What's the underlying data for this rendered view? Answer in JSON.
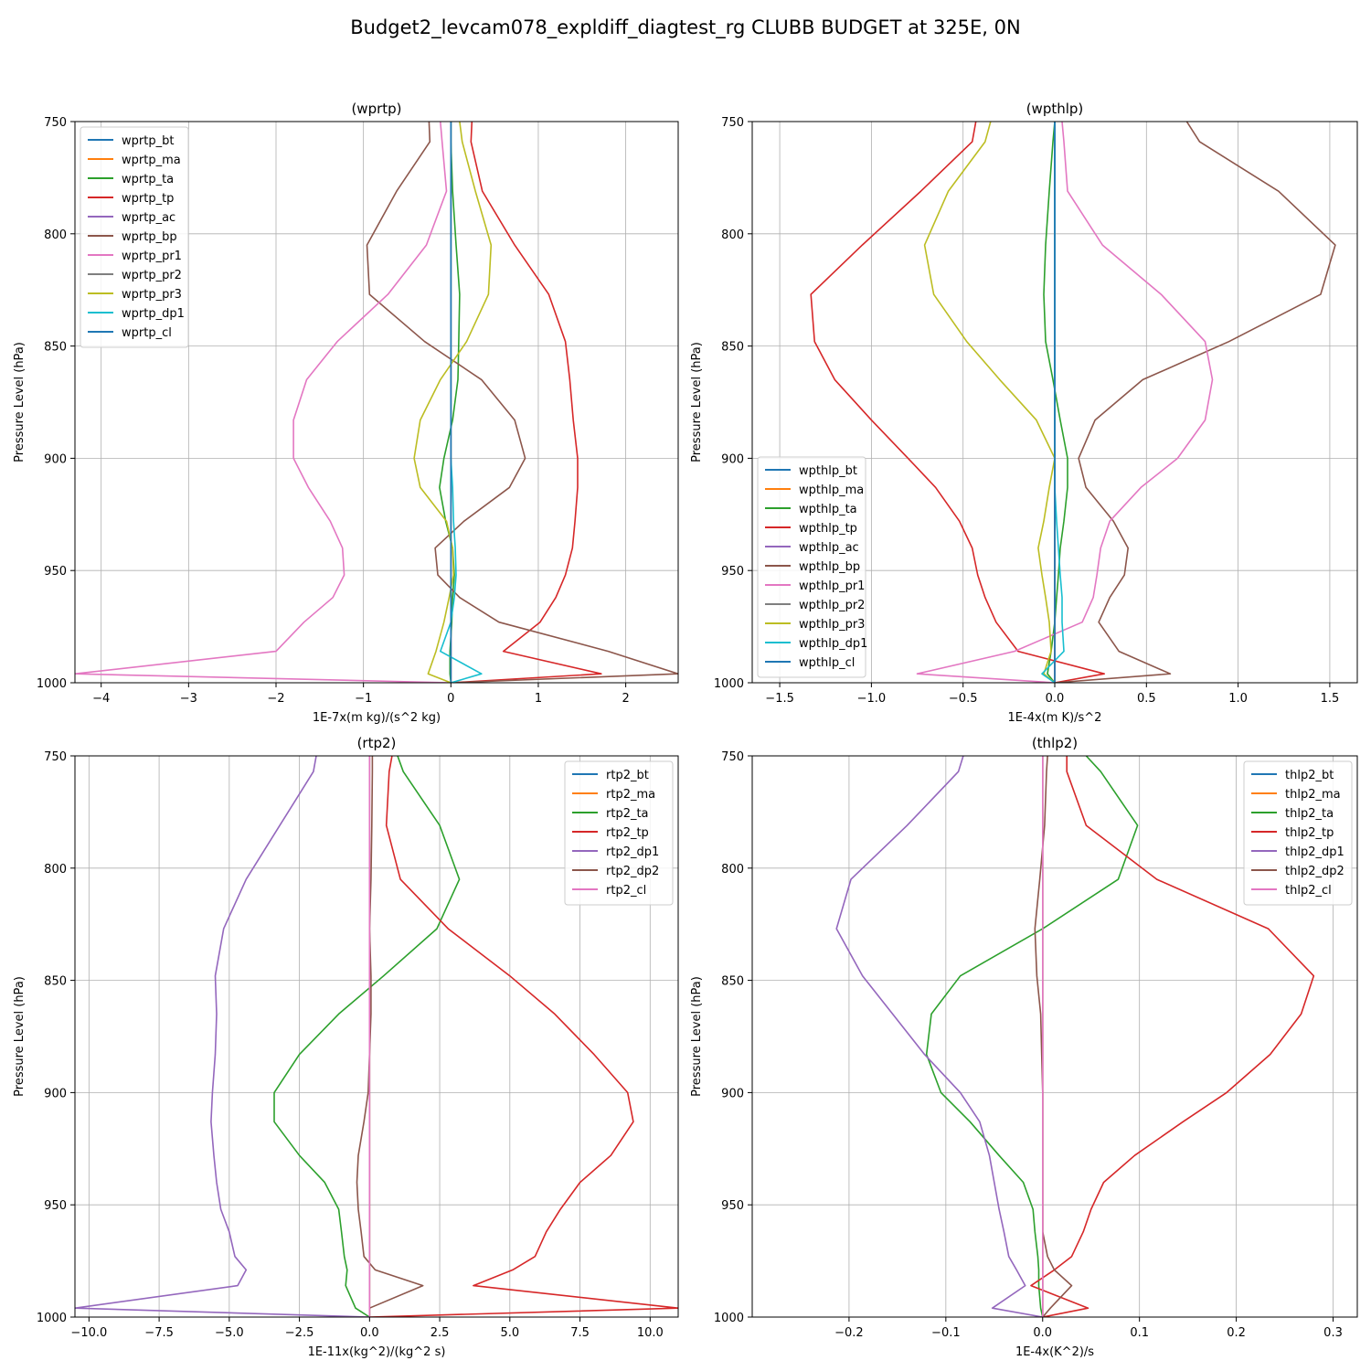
{
  "suptitle": "Budget2_levcam078_expldiff_diagtest_rg CLUBB BUDGET at 325E, 0N",
  "chart_data": [
    {
      "type": "line",
      "title": "(wprtp)",
      "xlabel": "1E-7x(m kg)/(s^2 kg)",
      "ylabel": "Pressure Level (hPa)",
      "xlim": [
        -4.3,
        2.6
      ],
      "ylim": [
        1000,
        750
      ],
      "xticks": [
        -4,
        -3,
        -2,
        -1,
        0,
        1,
        2
      ],
      "xtick_labels": [
        "−4",
        "−3",
        "−2",
        "−1",
        "0",
        "1",
        "2"
      ],
      "yticks": [
        750,
        800,
        850,
        900,
        950,
        1000
      ],
      "ytick_labels": [
        "750",
        "800",
        "850",
        "900",
        "950",
        "1000"
      ],
      "grid": true,
      "legend_position": "upper-left",
      "levels": [
        750,
        759,
        781,
        805,
        827,
        848,
        865,
        883,
        900,
        913,
        928,
        940,
        952,
        962,
        973,
        986,
        996,
        1000
      ],
      "series": [
        {
          "name": "wprtp_bt",
          "color": "#1f77b4",
          "values": [
            0,
            0,
            0,
            0,
            0,
            0,
            0,
            0,
            0,
            0,
            0,
            0,
            0,
            0,
            0,
            0,
            0,
            0
          ]
        },
        {
          "name": "wprtp_ma",
          "color": "#ff7f0e",
          "values": [
            0,
            0,
            0,
            0,
            0,
            0,
            0,
            0,
            0,
            0,
            0,
            0,
            0,
            0,
            0,
            0,
            0,
            0
          ]
        },
        {
          "name": "wprtp_ta",
          "color": "#2ca02c",
          "values": [
            0.0,
            0.0,
            0.02,
            0.06,
            0.1,
            0.09,
            0.08,
            0.02,
            -0.08,
            -0.13,
            -0.06,
            0.02,
            0.04,
            0.02,
            0.01,
            -0.01,
            -0.01,
            0.0
          ]
        },
        {
          "name": "wprtp_tp",
          "color": "#d62728",
          "values": [
            0.24,
            0.23,
            0.36,
            0.73,
            1.12,
            1.31,
            1.36,
            1.4,
            1.45,
            1.45,
            1.42,
            1.39,
            1.31,
            1.2,
            1.02,
            0.6,
            1.72,
            0.0
          ]
        },
        {
          "name": "wprtp_ac",
          "color": "#9467bd",
          "values": [
            0,
            0,
            0,
            0,
            0,
            0,
            0,
            0,
            0,
            0,
            0,
            0,
            0,
            0,
            0,
            0,
            0,
            0
          ]
        },
        {
          "name": "wprtp_bp",
          "color": "#8c564b",
          "values": [
            -0.25,
            -0.24,
            -0.62,
            -0.96,
            -0.93,
            -0.3,
            0.35,
            0.73,
            0.85,
            0.67,
            0.15,
            -0.18,
            -0.15,
            0.1,
            0.55,
            1.8,
            2.6,
            0.0
          ]
        },
        {
          "name": "wprtp_pr1",
          "color": "#e377c2",
          "values": [
            -0.12,
            -0.1,
            -0.05,
            -0.28,
            -0.72,
            -1.3,
            -1.65,
            -1.8,
            -1.8,
            -1.63,
            -1.38,
            -1.24,
            -1.22,
            -1.35,
            -1.68,
            -2.0,
            -4.3,
            0.0
          ]
        },
        {
          "name": "wprtp_pr2",
          "color": "#7f7f7f",
          "values": [
            0,
            0,
            0,
            0,
            0,
            0,
            0,
            0,
            0,
            0,
            0,
            0,
            0,
            0,
            0,
            0,
            0,
            0
          ]
        },
        {
          "name": "wprtp_pr3",
          "color": "#bcbd22",
          "values": [
            0.1,
            0.13,
            0.28,
            0.46,
            0.43,
            0.18,
            -0.12,
            -0.35,
            -0.42,
            -0.35,
            -0.05,
            0.02,
            0.03,
            -0.02,
            -0.08,
            -0.17,
            -0.26,
            0.0
          ]
        },
        {
          "name": "wprtp_dp1",
          "color": "#17becf",
          "values": [
            0,
            0,
            0,
            0,
            0,
            0,
            0,
            0,
            0,
            0.02,
            0.03,
            0.05,
            0.06,
            0.04,
            0.0,
            -0.12,
            0.35,
            0.0
          ]
        },
        {
          "name": "wprtp_cl",
          "color": "#1f77b4",
          "values": [
            0,
            0,
            0,
            0,
            0,
            0,
            0,
            0,
            0,
            0,
            0,
            0,
            0,
            0,
            0,
            0,
            0,
            0
          ]
        }
      ]
    },
    {
      "type": "line",
      "title": "(wpthlp)",
      "xlabel": "1E-4x(m K)/s^2",
      "ylabel": "Pressure Level (hPa)",
      "xlim": [
        -1.65,
        1.65
      ],
      "ylim": [
        1000,
        750
      ],
      "xticks": [
        -1.5,
        -1.0,
        -0.5,
        0.0,
        0.5,
        1.0,
        1.5
      ],
      "xtick_labels": [
        "−1.5",
        "−1.0",
        "−0.5",
        "0.0",
        "0.5",
        "1.0",
        "1.5"
      ],
      "yticks": [
        750,
        800,
        850,
        900,
        950,
        1000
      ],
      "ytick_labels": [
        "750",
        "800",
        "850",
        "900",
        "950",
        "1000"
      ],
      "grid": true,
      "legend_position": "lower-left",
      "levels": [
        750,
        759,
        781,
        805,
        827,
        848,
        865,
        883,
        900,
        913,
        928,
        940,
        952,
        962,
        973,
        986,
        996,
        1000
      ],
      "series": [
        {
          "name": "wpthlp_bt",
          "color": "#1f77b4",
          "values": [
            0,
            0,
            0,
            0,
            0,
            0,
            0,
            0,
            0,
            0,
            0,
            0,
            0,
            0,
            0,
            0,
            0,
            0
          ]
        },
        {
          "name": "wpthlp_ma",
          "color": "#ff7f0e",
          "values": [
            0,
            0,
            0,
            0,
            0,
            0,
            0,
            0,
            0,
            0,
            0,
            0,
            0,
            0,
            0,
            0,
            0,
            0
          ]
        },
        {
          "name": "wpthlp_ta",
          "color": "#2ca02c",
          "values": [
            0.0,
            -0.01,
            -0.03,
            -0.05,
            -0.06,
            -0.05,
            -0.01,
            0.03,
            0.07,
            0.07,
            0.05,
            0.03,
            0.02,
            0.01,
            0.0,
            -0.02,
            -0.04,
            0.0
          ]
        },
        {
          "name": "wpthlp_tp",
          "color": "#d62728",
          "values": [
            -0.43,
            -0.45,
            -0.73,
            -1.05,
            -1.33,
            -1.31,
            -1.2,
            -1.0,
            -0.8,
            -0.65,
            -0.52,
            -0.45,
            -0.42,
            -0.38,
            -0.32,
            -0.2,
            0.27,
            0.0
          ]
        },
        {
          "name": "wpthlp_ac",
          "color": "#9467bd",
          "values": [
            0,
            0,
            0,
            0,
            0,
            0,
            0,
            0,
            0,
            0,
            0,
            0,
            0,
            0,
            0,
            0,
            0,
            0
          ]
        },
        {
          "name": "wpthlp_bp",
          "color": "#8c564b",
          "values": [
            0.72,
            0.79,
            1.22,
            1.53,
            1.45,
            0.95,
            0.48,
            0.22,
            0.13,
            0.17,
            0.32,
            0.4,
            0.38,
            0.3,
            0.24,
            0.35,
            0.63,
            0.0
          ]
        },
        {
          "name": "wpthlp_pr1",
          "color": "#e377c2",
          "values": [
            0.04,
            0.05,
            0.07,
            0.26,
            0.58,
            0.82,
            0.86,
            0.82,
            0.67,
            0.47,
            0.3,
            0.25,
            0.23,
            0.21,
            0.15,
            -0.22,
            -0.75,
            0.0
          ]
        },
        {
          "name": "wpthlp_pr2",
          "color": "#7f7f7f",
          "values": [
            0,
            0,
            0,
            0,
            0,
            0,
            0,
            0,
            0,
            0,
            0,
            0,
            0,
            0,
            0,
            0,
            0,
            0
          ]
        },
        {
          "name": "wpthlp_pr3",
          "color": "#bcbd22",
          "values": [
            -0.35,
            -0.38,
            -0.58,
            -0.71,
            -0.66,
            -0.48,
            -0.3,
            -0.1,
            0.0,
            -0.03,
            -0.06,
            -0.09,
            -0.07,
            -0.05,
            -0.03,
            -0.02,
            -0.06,
            0.0
          ]
        },
        {
          "name": "wpthlp_dp1",
          "color": "#17becf",
          "values": [
            0,
            0,
            0,
            0,
            0,
            0,
            0,
            0,
            0,
            0,
            0.01,
            0.02,
            0.03,
            0.04,
            0.04,
            0.05,
            -0.07,
            0.0
          ]
        },
        {
          "name": "wpthlp_cl",
          "color": "#1f77b4",
          "values": [
            0,
            0,
            0,
            0,
            0,
            0,
            0,
            0,
            0,
            0,
            0,
            0,
            0,
            0,
            0,
            0,
            0,
            0
          ]
        }
      ]
    },
    {
      "type": "line",
      "title": "(rtp2)",
      "xlabel": "1E-11x(kg^2)/(kg^2 s)",
      "ylabel": "Pressure Level (hPa)",
      "xlim": [
        -10.5,
        11.0
      ],
      "ylim": [
        1000,
        750
      ],
      "xticks": [
        -10.0,
        -7.5,
        -5.0,
        -2.5,
        0.0,
        2.5,
        5.0,
        7.5,
        10.0
      ],
      "xtick_labels": [
        "−10.0",
        "−7.5",
        "−5.0",
        "−2.5",
        "0.0",
        "2.5",
        "5.0",
        "7.5",
        "10.0"
      ],
      "yticks": [
        750,
        800,
        850,
        900,
        950,
        1000
      ],
      "ytick_labels": [
        "750",
        "800",
        "850",
        "900",
        "950",
        "1000"
      ],
      "grid": true,
      "legend_position": "upper-right",
      "levels": [
        750,
        757,
        781,
        805,
        827,
        848,
        865,
        883,
        900,
        913,
        928,
        940,
        952,
        962,
        973,
        979,
        986,
        996,
        1000
      ],
      "series": [
        {
          "name": "rtp2_bt",
          "color": "#1f77b4",
          "values": [
            0,
            0,
            0,
            0,
            0,
            0,
            0,
            0,
            0,
            0,
            0,
            0,
            0,
            0,
            0,
            0,
            0,
            0,
            0
          ]
        },
        {
          "name": "rtp2_ma",
          "color": "#ff7f0e",
          "values": [
            0,
            0,
            0,
            0,
            0,
            0,
            0,
            0,
            0,
            0,
            0,
            0,
            0,
            0,
            0,
            0,
            0,
            0,
            0
          ]
        },
        {
          "name": "rtp2_ta",
          "color": "#2ca02c",
          "values": [
            1.0,
            1.2,
            2.5,
            3.2,
            2.4,
            0.5,
            -1.1,
            -2.5,
            -3.4,
            -3.4,
            -2.5,
            -1.6,
            -1.1,
            -1.0,
            -0.9,
            -0.8,
            -0.85,
            -0.5,
            0.0
          ]
        },
        {
          "name": "rtp2_tp",
          "color": "#d62728",
          "values": [
            0.8,
            0.7,
            0.6,
            1.1,
            2.8,
            5.0,
            6.6,
            8.0,
            9.2,
            9.4,
            8.6,
            7.5,
            6.8,
            6.3,
            5.9,
            5.1,
            3.7,
            11.0,
            0.0
          ]
        },
        {
          "name": "rtp2_dp1",
          "color": "#9467bd",
          "values": [
            -1.9,
            -2.0,
            -3.2,
            -4.4,
            -5.2,
            -5.5,
            -5.45,
            -5.5,
            -5.6,
            -5.65,
            -5.55,
            -5.45,
            -5.3,
            -5.0,
            -4.8,
            -4.4,
            -4.7,
            -10.5,
            0.0
          ]
        },
        {
          "name": "rtp2_dp2",
          "color": "#8c564b",
          "values": [
            0.1,
            0.1,
            0.08,
            0.05,
            0.0,
            0.05,
            0.05,
            0.0,
            -0.05,
            -0.2,
            -0.4,
            -0.45,
            -0.4,
            -0.3,
            -0.2,
            0.2,
            1.9,
            0.0,
            0.0
          ]
        },
        {
          "name": "rtp2_cl",
          "color": "#e377c2",
          "values": [
            0,
            0,
            0,
            0,
            0,
            0,
            0,
            0,
            0,
            0,
            0,
            0,
            0,
            0,
            0,
            0,
            0,
            0,
            0
          ]
        }
      ]
    },
    {
      "type": "line",
      "title": "(thlp2)",
      "xlabel": "1E-4x(K^2)/s",
      "ylabel": "Pressure Level (hPa)",
      "xlim": [
        -0.3,
        0.325
      ],
      "ylim": [
        1000,
        750
      ],
      "xticks": [
        -0.2,
        -0.1,
        0.0,
        0.1,
        0.2,
        0.3
      ],
      "xtick_labels": [
        "−0.2",
        "−0.1",
        "0.0",
        "0.1",
        "0.2",
        "0.3"
      ],
      "yticks": [
        750,
        800,
        850,
        900,
        950,
        1000
      ],
      "ytick_labels": [
        "750",
        "800",
        "850",
        "900",
        "950",
        "1000"
      ],
      "grid": true,
      "legend_position": "upper-right",
      "levels": [
        750,
        757,
        781,
        805,
        827,
        848,
        865,
        883,
        900,
        913,
        928,
        940,
        952,
        962,
        973,
        979,
        986,
        996,
        1000
      ],
      "series": [
        {
          "name": "thlp2_bt",
          "color": "#1f77b4",
          "values": [
            0,
            0,
            0,
            0,
            0,
            0,
            0,
            0,
            0,
            0,
            0,
            0,
            0,
            0,
            0,
            0,
            0,
            0,
            0
          ]
        },
        {
          "name": "thlp2_ma",
          "color": "#ff7f0e",
          "values": [
            0,
            0,
            0,
            0,
            0,
            0,
            0,
            0,
            0,
            0,
            0,
            0,
            0,
            0,
            0,
            0,
            0,
            0,
            0
          ]
        },
        {
          "name": "thlp2_ta",
          "color": "#2ca02c",
          "values": [
            0.045,
            0.06,
            0.098,
            0.078,
            0.0,
            -0.085,
            -0.115,
            -0.12,
            -0.105,
            -0.075,
            -0.045,
            -0.02,
            -0.01,
            -0.008,
            -0.005,
            -0.004,
            -0.004,
            -0.002,
            0.0
          ]
        },
        {
          "name": "thlp2_tp",
          "color": "#d62728",
          "values": [
            0.025,
            0.025,
            0.045,
            0.118,
            0.233,
            0.28,
            0.267,
            0.235,
            0.19,
            0.145,
            0.095,
            0.063,
            0.05,
            0.042,
            0.03,
            0.012,
            -0.012,
            0.047,
            0.0
          ]
        },
        {
          "name": "thlp2_dp1",
          "color": "#9467bd",
          "values": [
            -0.082,
            -0.087,
            -0.14,
            -0.198,
            -0.213,
            -0.186,
            -0.155,
            -0.122,
            -0.085,
            -0.065,
            -0.055,
            -0.05,
            -0.045,
            -0.04,
            -0.035,
            -0.027,
            -0.018,
            -0.052,
            0.0
          ]
        },
        {
          "name": "thlp2_dp2",
          "color": "#8c564b",
          "values": [
            0.005,
            0.004,
            0.002,
            -0.003,
            -0.008,
            -0.006,
            -0.002,
            -0.001,
            0.0,
            0.0,
            0.0,
            0.0,
            0.0,
            0.0,
            0.005,
            0.012,
            0.03,
            0.008,
            0.0
          ]
        },
        {
          "name": "thlp2_cl",
          "color": "#e377c2",
          "values": [
            0,
            0,
            0,
            0,
            0,
            0,
            0,
            0,
            0,
            0,
            0,
            0,
            0,
            0,
            0,
            0,
            0,
            0,
            0
          ]
        }
      ]
    }
  ]
}
